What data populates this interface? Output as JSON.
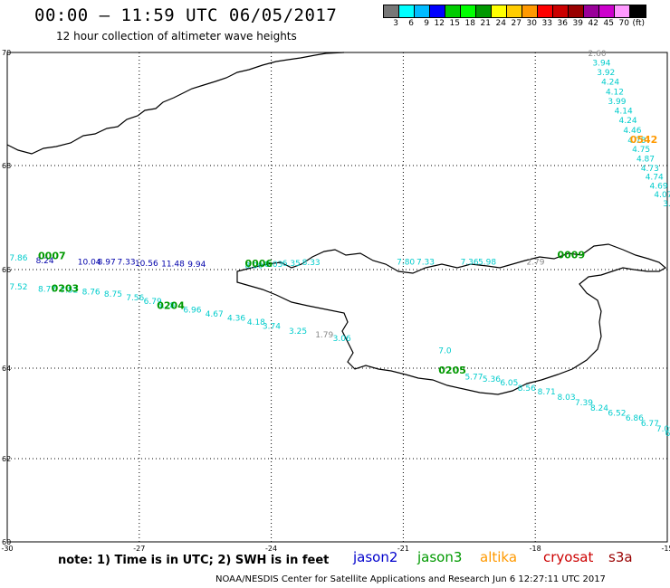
{
  "title": "00:00 — 11:59 UTC 06/05/2017",
  "subtitle": "12 hour collection of altimeter wave heights",
  "legend": {
    "colors": [
      "#777777",
      "#00ffff",
      "#00bbff",
      "#0000ff",
      "#00cc00",
      "#00ff00",
      "#009900",
      "#ffff00",
      "#ffcc00",
      "#ff9900",
      "#ff0000",
      "#cc0000",
      "#990000",
      "#990099",
      "#cc00cc",
      "#ff99ff",
      "#000000"
    ],
    "labels": [
      "3",
      "6",
      "9",
      "12",
      "15",
      "18",
      "21",
      "24",
      "27",
      "30",
      "33",
      "36",
      "39",
      "42",
      "45",
      "70",
      "(ft)"
    ]
  },
  "lat_labels": [
    "70",
    "68",
    "66",
    "64",
    "62",
    "60"
  ],
  "lon_labels": [
    "-30",
    "-27",
    "-24",
    "-21",
    "-18",
    "-15"
  ],
  "note": "note: 1) Time is in UTC; 2) SWH is in feet",
  "satellites": [
    {
      "name": "jason2",
      "color": "#0000cc"
    },
    {
      "name": "jason3",
      "color": "#009900"
    },
    {
      "name": "altika",
      "color": "#ff9900"
    },
    {
      "name": "cryosat",
      "color": "#cc0000"
    },
    {
      "name": "s3a",
      "color": "#990000"
    }
  ],
  "footer": "NOAA/NESDIS Center for Satellite Applications and Research   Jun  6 12:27:11 UTC 2017",
  "tracks": [
    {
      "color": "#00cccc",
      "points": [
        {
          "lat": 69.94,
          "lon": -16.8,
          "v": "2.60",
          "gray": true
        },
        {
          "lat": 69.77,
          "lon": -16.7,
          "v": "3.94"
        },
        {
          "lat": 69.6,
          "lon": -16.6,
          "v": "3.92"
        },
        {
          "lat": 69.43,
          "lon": -16.5,
          "v": "4.24"
        },
        {
          "lat": 69.26,
          "lon": -16.4,
          "v": "4.12"
        },
        {
          "lat": 69.09,
          "lon": -16.35,
          "v": "3.99"
        },
        {
          "lat": 68.92,
          "lon": -16.2,
          "v": "4.14"
        },
        {
          "lat": 68.75,
          "lon": -16.1,
          "v": "4.24"
        },
        {
          "lat": 68.58,
          "lon": -16.0,
          "v": "4.46"
        },
        {
          "lat": 68.4,
          "lon": -15.9,
          "v": "4.78"
        },
        {
          "lat": 68.24,
          "lon": -15.8,
          "v": "4.75"
        },
        {
          "lat": 68.07,
          "lon": -15.7,
          "v": "4.87"
        },
        {
          "lat": 67.9,
          "lon": -15.6,
          "v": "4.73"
        },
        {
          "lat": 67.73,
          "lon": -15.5,
          "v": "4.74"
        },
        {
          "lat": 67.56,
          "lon": -15.4,
          "v": "4.69"
        },
        {
          "lat": 67.39,
          "lon": -15.3,
          "v": "4.07"
        },
        {
          "lat": 67.22,
          "lon": -15.1,
          "v": "3."
        }
      ]
    },
    {
      "color": "#00cccc",
      "points": [
        {
          "lat": 66.17,
          "lon": -29.95,
          "v": "7.86"
        },
        {
          "lat": 65.6,
          "lon": -29.95,
          "v": "7.52"
        },
        {
          "lat": 65.55,
          "lon": -29.3,
          "v": "8.77"
        },
        {
          "lat": 65.53,
          "lon": -28.8,
          "v": "7.52"
        },
        {
          "lat": 65.5,
          "lon": -28.3,
          "v": "8.76"
        },
        {
          "lat": 65.45,
          "lon": -27.8,
          "v": "8.75"
        },
        {
          "lat": 65.38,
          "lon": -27.3,
          "v": "7.56"
        },
        {
          "lat": 65.3,
          "lon": -26.9,
          "v": "6.79"
        },
        {
          "lat": 65.22,
          "lon": -26.6,
          "v": "6.28"
        },
        {
          "lat": 65.13,
          "lon": -26.0,
          "v": "6.96"
        },
        {
          "lat": 65.05,
          "lon": -25.5,
          "v": "4.67"
        },
        {
          "lat": 64.96,
          "lon": -25.0,
          "v": "4.36"
        },
        {
          "lat": 64.88,
          "lon": -24.55,
          "v": "4.18"
        },
        {
          "lat": 64.8,
          "lon": -24.2,
          "v": "3.74"
        },
        {
          "lat": 64.7,
          "lon": -23.6,
          "v": "3.25"
        },
        {
          "lat": 64.62,
          "lon": -23.0,
          "v": "1.79",
          "gray": true
        },
        {
          "lat": 64.55,
          "lon": -22.6,
          "v": "3.06"
        }
      ]
    },
    {
      "color": "#00cccc",
      "points": [
        {
          "lat": 66.1,
          "lon": -21.15,
          "v": "7.80"
        },
        {
          "lat": 66.1,
          "lon": -20.7,
          "v": "7.33"
        },
        {
          "lat": 66.1,
          "lon": -19.7,
          "v": "7.36"
        },
        {
          "lat": 66.1,
          "lon": -19.3,
          "v": "5.98"
        },
        {
          "lat": 66.1,
          "lon": -18.2,
          "v": "2.79",
          "gray": true
        }
      ]
    },
    {
      "color": "#00cccc",
      "points": [
        {
          "lat": 66.03,
          "lon": -24.6,
          "v": "8.00"
        },
        {
          "lat": 66.05,
          "lon": -24.15,
          "v": "8.03"
        },
        {
          "lat": 66.07,
          "lon": -23.75,
          "v": "6.35"
        },
        {
          "lat": 66.09,
          "lon": -23.3,
          "v": "8.33"
        }
      ]
    },
    {
      "color": "#00cccc",
      "points": [
        {
          "lat": 64.3,
          "lon": -20.2,
          "v": "7.0"
        },
        {
          "lat": 63.75,
          "lon": -19.6,
          "v": "5.77"
        },
        {
          "lat": 63.7,
          "lon": -19.2,
          "v": "5.36"
        },
        {
          "lat": 63.62,
          "lon": -18.8,
          "v": "6.05"
        },
        {
          "lat": 63.5,
          "lon": -18.4,
          "v": "8.56"
        },
        {
          "lat": 63.42,
          "lon": -17.95,
          "v": "8.71"
        },
        {
          "lat": 63.3,
          "lon": -17.5,
          "v": "8.03"
        },
        {
          "lat": 63.18,
          "lon": -17.1,
          "v": "7.39"
        },
        {
          "lat": 63.06,
          "lon": -16.75,
          "v": "8.24"
        },
        {
          "lat": 62.95,
          "lon": -16.35,
          "v": "6.52"
        },
        {
          "lat": 62.84,
          "lon": -15.95,
          "v": "6.86"
        },
        {
          "lat": 62.72,
          "lon": -15.6,
          "v": "6.77"
        },
        {
          "lat": 62.6,
          "lon": -15.25,
          "v": "7.09"
        },
        {
          "lat": 62.5,
          "lon": -15.05,
          "v": "6."
        }
      ]
    },
    {
      "color": "#0000aa",
      "points": [
        {
          "lat": 66.12,
          "lon": -29.35,
          "v": "8.24"
        },
        {
          "lat": 66.1,
          "lon": -28.4,
          "v": "10.04"
        },
        {
          "lat": 66.1,
          "lon": -27.95,
          "v": "8.97"
        },
        {
          "lat": 66.1,
          "lon": -27.5,
          "v": "7.33"
        },
        {
          "lat": 66.07,
          "lon": -27.1,
          "v": "10.56"
        },
        {
          "lat": 66.06,
          "lon": -26.5,
          "v": "11.48"
        },
        {
          "lat": 66.05,
          "lon": -25.9,
          "v": "9.94"
        }
      ]
    }
  ],
  "time_labels": [
    {
      "lat": 66.2,
      "lon": -29.3,
      "v": "0007",
      "color": "#009900"
    },
    {
      "lat": 65.55,
      "lon": -29.0,
      "v": "0203",
      "color": "#009900"
    },
    {
      "lat": 65.2,
      "lon": -26.6,
      "v": "0204",
      "color": "#009900"
    },
    {
      "lat": 66.05,
      "lon": -24.6,
      "v": "0006",
      "color": "#009900"
    },
    {
      "lat": 66.22,
      "lon": -17.5,
      "v": "0009",
      "color": "#009900"
    },
    {
      "lat": 68.4,
      "lon": -15.85,
      "v": "0542",
      "color": "#ff9900"
    },
    {
      "lat": 63.88,
      "lon": -20.2,
      "v": "0205",
      "color": "#009900"
    }
  ]
}
